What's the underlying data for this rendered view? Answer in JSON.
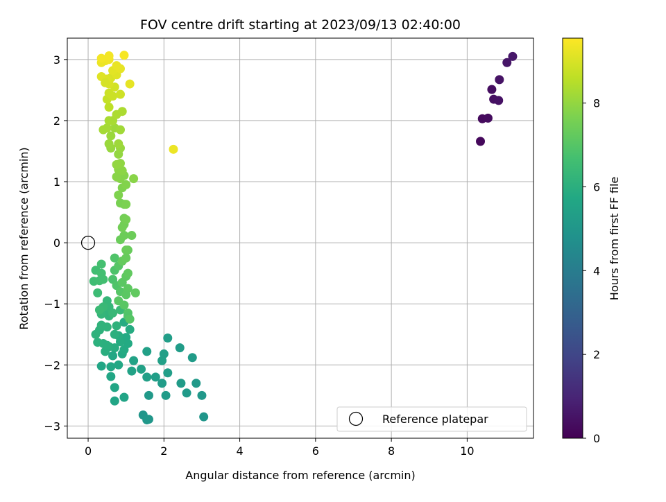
{
  "chart_data": {
    "type": "scatter",
    "title": "FOV centre drift starting at 2023/09/13 02:40:00",
    "xlabel": "Angular distance from reference (arcmin)",
    "ylabel": "Rotation from reference (arcmin)",
    "xlim": [
      -0.55,
      11.75
    ],
    "ylim": [
      -3.2,
      3.35
    ],
    "xticks": [
      "0",
      "2",
      "4",
      "6",
      "8",
      "10"
    ],
    "yticks": [
      "−3",
      "−2",
      "−1",
      "0",
      "1",
      "2",
      "3"
    ],
    "grid": true,
    "legend": {
      "placement": "lower-right",
      "entries": [
        "Reference platepar"
      ]
    },
    "colorbar": {
      "label": "Hours from first FF file",
      "range": [
        0,
        9.55
      ],
      "ticks": [
        "0",
        "2",
        "4",
        "6",
        "8"
      ],
      "colormap": "viridis"
    },
    "reference_point": {
      "x": 0,
      "y": 0
    },
    "points": [
      {
        "x": 10.35,
        "y": 1.66,
        "c": 0.2
      },
      {
        "x": 10.4,
        "y": 2.03,
        "c": 0.25
      },
      {
        "x": 10.55,
        "y": 2.04,
        "c": 0.3
      },
      {
        "x": 10.65,
        "y": 2.51,
        "c": 0.35
      },
      {
        "x": 10.7,
        "y": 2.35,
        "c": 0.4
      },
      {
        "x": 10.83,
        "y": 2.33,
        "c": 0.45
      },
      {
        "x": 10.85,
        "y": 2.67,
        "c": 0.5
      },
      {
        "x": 11.05,
        "y": 2.95,
        "c": 0.55
      },
      {
        "x": 11.2,
        "y": 3.05,
        "c": 0.6
      },
      {
        "x": 1.45,
        "y": -2.82,
        "c": 5.0
      },
      {
        "x": 1.6,
        "y": -2.89,
        "c": 5.0
      },
      {
        "x": 1.55,
        "y": -2.9,
        "c": 5.05
      },
      {
        "x": 1.6,
        "y": -2.5,
        "c": 5.1
      },
      {
        "x": 3.05,
        "y": -2.85,
        "c": 5.0
      },
      {
        "x": 3.0,
        "y": -2.5,
        "c": 5.05
      },
      {
        "x": 2.85,
        "y": -2.3,
        "c": 5.1
      },
      {
        "x": 2.6,
        "y": -2.46,
        "c": 5.15
      },
      {
        "x": 2.45,
        "y": -2.3,
        "c": 5.2
      },
      {
        "x": 2.05,
        "y": -2.5,
        "c": 5.2
      },
      {
        "x": 1.95,
        "y": -2.3,
        "c": 5.25
      },
      {
        "x": 1.78,
        "y": -2.2,
        "c": 5.3
      },
      {
        "x": 1.55,
        "y": -2.2,
        "c": 5.35
      },
      {
        "x": 2.1,
        "y": -2.13,
        "c": 5.3
      },
      {
        "x": 2.75,
        "y": -1.88,
        "c": 5.2
      },
      {
        "x": 2.42,
        "y": -1.72,
        "c": 5.25
      },
      {
        "x": 2.1,
        "y": -1.56,
        "c": 5.3
      },
      {
        "x": 2.0,
        "y": -1.82,
        "c": 5.35
      },
      {
        "x": 1.95,
        "y": -1.93,
        "c": 5.4
      },
      {
        "x": 1.55,
        "y": -1.78,
        "c": 5.4
      },
      {
        "x": 1.4,
        "y": -2.07,
        "c": 5.45
      },
      {
        "x": 1.2,
        "y": -1.93,
        "c": 5.5
      },
      {
        "x": 1.15,
        "y": -2.1,
        "c": 5.5
      },
      {
        "x": 0.95,
        "y": -2.53,
        "c": 5.55
      },
      {
        "x": 0.7,
        "y": -2.59,
        "c": 5.6
      },
      {
        "x": 0.7,
        "y": -2.37,
        "c": 5.6
      },
      {
        "x": 0.6,
        "y": -2.19,
        "c": 5.65
      },
      {
        "x": 0.35,
        "y": -2.02,
        "c": 5.65
      },
      {
        "x": 0.6,
        "y": -2.03,
        "c": 5.7
      },
      {
        "x": 0.8,
        "y": -2.0,
        "c": 5.7
      },
      {
        "x": 0.9,
        "y": -1.82,
        "c": 5.75
      },
      {
        "x": 1.05,
        "y": -1.65,
        "c": 5.8
      },
      {
        "x": 1.0,
        "y": -1.55,
        "c": 5.8
      },
      {
        "x": 1.1,
        "y": -1.42,
        "c": 5.85
      },
      {
        "x": 0.95,
        "y": -1.3,
        "c": 5.85
      },
      {
        "x": 0.95,
        "y": -1.75,
        "c": 5.8
      },
      {
        "x": 0.85,
        "y": -1.62,
        "c": 5.85
      },
      {
        "x": 0.8,
        "y": -1.52,
        "c": 5.9
      },
      {
        "x": 0.7,
        "y": -1.72,
        "c": 5.9
      },
      {
        "x": 0.55,
        "y": -1.7,
        "c": 5.95
      },
      {
        "x": 0.45,
        "y": -1.78,
        "c": 5.95
      },
      {
        "x": 0.5,
        "y": -1.68,
        "c": 6.0
      },
      {
        "x": 0.4,
        "y": -1.65,
        "c": 6.0
      },
      {
        "x": 0.25,
        "y": -1.63,
        "c": 6.05
      },
      {
        "x": 0.2,
        "y": -1.5,
        "c": 6.1
      },
      {
        "x": 0.3,
        "y": -1.43,
        "c": 6.1
      },
      {
        "x": 0.35,
        "y": -1.35,
        "c": 6.15
      },
      {
        "x": 0.5,
        "y": -1.38,
        "c": 6.15
      },
      {
        "x": 0.55,
        "y": -1.2,
        "c": 6.2
      },
      {
        "x": 0.45,
        "y": -1.13,
        "c": 6.2
      },
      {
        "x": 0.35,
        "y": -1.17,
        "c": 6.25
      },
      {
        "x": 0.5,
        "y": -0.95,
        "c": 6.3
      },
      {
        "x": 0.55,
        "y": -1.05,
        "c": 6.3
      },
      {
        "x": 0.65,
        "y": -1.15,
        "c": 6.35
      },
      {
        "x": 0.7,
        "y": -1.5,
        "c": 6.0
      },
      {
        "x": 0.75,
        "y": -1.36,
        "c": 6.1
      },
      {
        "x": 0.85,
        "y": -1.1,
        "c": 6.4
      },
      {
        "x": 0.65,
        "y": -1.85,
        "c": 5.7
      },
      {
        "x": 0.4,
        "y": -1.05,
        "c": 6.4
      },
      {
        "x": 0.3,
        "y": -1.1,
        "c": 6.45
      },
      {
        "x": 0.25,
        "y": -0.82,
        "c": 6.5
      },
      {
        "x": 0.15,
        "y": -0.63,
        "c": 6.55
      },
      {
        "x": 0.3,
        "y": -0.62,
        "c": 6.6
      },
      {
        "x": 0.2,
        "y": -0.45,
        "c": 6.6
      },
      {
        "x": 0.35,
        "y": -0.5,
        "c": 6.65
      },
      {
        "x": 0.4,
        "y": -0.6,
        "c": 6.65
      },
      {
        "x": 0.35,
        "y": -0.35,
        "c": 6.7
      },
      {
        "x": 0.65,
        "y": -0.6,
        "c": 6.8
      },
      {
        "x": 0.7,
        "y": -0.25,
        "c": 6.9
      },
      {
        "x": 0.7,
        "y": -0.45,
        "c": 6.85
      },
      {
        "x": 0.75,
        "y": -0.7,
        "c": 6.9
      },
      {
        "x": 0.8,
        "y": -0.38,
        "c": 7.0
      },
      {
        "x": 0.85,
        "y": -0.8,
        "c": 7.0
      },
      {
        "x": 0.8,
        "y": -0.95,
        "c": 7.05
      },
      {
        "x": 0.9,
        "y": -0.65,
        "c": 7.1
      },
      {
        "x": 1.0,
        "y": -0.55,
        "c": 7.15
      },
      {
        "x": 1.05,
        "y": -0.75,
        "c": 7.15
      },
      {
        "x": 1.05,
        "y": -1.15,
        "c": 6.95
      },
      {
        "x": 1.05,
        "y": -1.2,
        "c": 6.9
      },
      {
        "x": 1.1,
        "y": -1.25,
        "c": 7.0
      },
      {
        "x": 0.95,
        "y": -1.02,
        "c": 7.05
      },
      {
        "x": 1.0,
        "y": -0.85,
        "c": 7.1
      },
      {
        "x": 1.25,
        "y": -0.82,
        "c": 7.2
      },
      {
        "x": 1.05,
        "y": -0.5,
        "c": 7.2
      },
      {
        "x": 0.9,
        "y": -0.3,
        "c": 7.25
      },
      {
        "x": 1.0,
        "y": -0.25,
        "c": 7.3
      },
      {
        "x": 1.05,
        "y": -0.12,
        "c": 7.3
      },
      {
        "x": 0.85,
        "y": 0.05,
        "c": 7.35
      },
      {
        "x": 0.95,
        "y": 0.12,
        "c": 7.4
      },
      {
        "x": 1.15,
        "y": 0.12,
        "c": 7.4
      },
      {
        "x": 1.0,
        "y": -0.12,
        "c": 7.35
      },
      {
        "x": 0.95,
        "y": 0.3,
        "c": 7.45
      },
      {
        "x": 0.9,
        "y": 0.25,
        "c": 7.5
      },
      {
        "x": 0.95,
        "y": 0.4,
        "c": 7.5
      },
      {
        "x": 1.0,
        "y": 0.38,
        "c": 7.55
      },
      {
        "x": 0.85,
        "y": 0.65,
        "c": 7.6
      },
      {
        "x": 0.95,
        "y": 0.63,
        "c": 7.6
      },
      {
        "x": 1.0,
        "y": 0.63,
        "c": 7.65
      },
      {
        "x": 0.8,
        "y": 0.78,
        "c": 7.7
      },
      {
        "x": 0.9,
        "y": 0.9,
        "c": 7.7
      },
      {
        "x": 1.0,
        "y": 0.95,
        "c": 7.75
      },
      {
        "x": 0.85,
        "y": 1.05,
        "c": 7.8
      },
      {
        "x": 0.95,
        "y": 1.1,
        "c": 7.8
      },
      {
        "x": 0.75,
        "y": 1.08,
        "c": 7.85
      },
      {
        "x": 1.2,
        "y": 1.05,
        "c": 7.85
      },
      {
        "x": 0.8,
        "y": 1.2,
        "c": 7.9
      },
      {
        "x": 0.9,
        "y": 1.18,
        "c": 7.9
      },
      {
        "x": 0.85,
        "y": 1.3,
        "c": 7.95
      },
      {
        "x": 0.75,
        "y": 1.28,
        "c": 8.0
      },
      {
        "x": 0.8,
        "y": 1.45,
        "c": 8.0
      },
      {
        "x": 0.85,
        "y": 1.55,
        "c": 8.05
      },
      {
        "x": 0.6,
        "y": 1.55,
        "c": 8.05
      },
      {
        "x": 0.55,
        "y": 1.62,
        "c": 8.1
      },
      {
        "x": 0.6,
        "y": 1.75,
        "c": 8.1
      },
      {
        "x": 0.8,
        "y": 1.62,
        "c": 8.15
      },
      {
        "x": 0.7,
        "y": 1.88,
        "c": 8.15
      },
      {
        "x": 0.85,
        "y": 1.85,
        "c": 8.2
      },
      {
        "x": 0.5,
        "y": 1.88,
        "c": 8.25
      },
      {
        "x": 0.4,
        "y": 1.85,
        "c": 8.25
      },
      {
        "x": 0.55,
        "y": 2.0,
        "c": 8.3
      },
      {
        "x": 0.65,
        "y": 2.0,
        "c": 8.3
      },
      {
        "x": 0.75,
        "y": 2.1,
        "c": 8.35
      },
      {
        "x": 0.9,
        "y": 2.15,
        "c": 8.35
      },
      {
        "x": 2.25,
        "y": 1.53,
        "c": 9.3
      },
      {
        "x": 0.55,
        "y": 2.22,
        "c": 8.6
      },
      {
        "x": 0.5,
        "y": 2.35,
        "c": 8.7
      },
      {
        "x": 0.55,
        "y": 2.45,
        "c": 8.8
      },
      {
        "x": 0.65,
        "y": 2.4,
        "c": 8.8
      },
      {
        "x": 0.85,
        "y": 2.43,
        "c": 8.85
      },
      {
        "x": 0.7,
        "y": 2.55,
        "c": 8.9
      },
      {
        "x": 0.55,
        "y": 2.6,
        "c": 9.0
      },
      {
        "x": 0.6,
        "y": 2.7,
        "c": 9.0
      },
      {
        "x": 0.5,
        "y": 2.68,
        "c": 9.05
      },
      {
        "x": 0.35,
        "y": 2.72,
        "c": 9.1
      },
      {
        "x": 0.75,
        "y": 2.75,
        "c": 9.1
      },
      {
        "x": 0.65,
        "y": 2.82,
        "c": 9.15
      },
      {
        "x": 1.1,
        "y": 2.6,
        "c": 9.2
      },
      {
        "x": 0.85,
        "y": 2.85,
        "c": 9.2
      },
      {
        "x": 0.75,
        "y": 2.9,
        "c": 9.25
      },
      {
        "x": 0.35,
        "y": 2.95,
        "c": 9.3
      },
      {
        "x": 0.45,
        "y": 2.98,
        "c": 9.3
      },
      {
        "x": 0.55,
        "y": 3.0,
        "c": 9.35
      },
      {
        "x": 0.35,
        "y": 3.02,
        "c": 9.4
      },
      {
        "x": 0.55,
        "y": 3.06,
        "c": 9.4
      },
      {
        "x": 0.95,
        "y": 3.07,
        "c": 9.45
      },
      {
        "x": 0.45,
        "y": 2.62,
        "c": 8.95
      }
    ]
  }
}
